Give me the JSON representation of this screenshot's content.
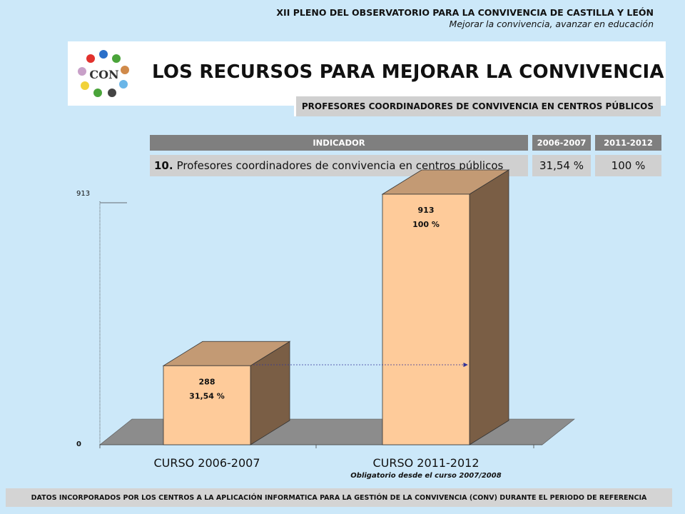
{
  "header": {
    "event": "XII PLENO DEL OBSERVATORIO PARA LA CONVIVENCIA DE CASTILLA Y LEÓN",
    "slogan": "Mejorar la convivencia, avanzar en educación"
  },
  "logo": {
    "text": "CON"
  },
  "title": "LOS RECURSOS PARA MEJORAR LA CONVIVENCIA",
  "subtitle": "PROFESORES COORDINADORES DE CONVIVENCIA EN CENTROS PÚBLICOS",
  "indicator_table": {
    "headers": [
      "INDICADOR",
      "2006-2007",
      "2011-2012"
    ],
    "row": {
      "number": "10.",
      "label": "Profesores coordinadores de convivencia en centros públicos",
      "v1": "31,54 %",
      "v2": "100 %"
    }
  },
  "chart_data": {
    "type": "bar",
    "categories": [
      "CURSO 2006-2007",
      "CURSO 2011-2012"
    ],
    "values": [
      288,
      913
    ],
    "value_labels": [
      "288",
      "913"
    ],
    "percent_labels": [
      "31,54 %",
      "100 %"
    ],
    "yticks": [
      "0",
      "913"
    ],
    "ylim": [
      0,
      913
    ],
    "note": "Obligatorio desde el curso 2007/2008",
    "colors": {
      "front": "#fecb9a",
      "top": "#c39a74",
      "side": "#7a5e45",
      "floor": "#8c8c8c",
      "arrow": "#333399"
    }
  },
  "footer": "DATOS INCORPORADOS POR LOS CENTROS A LA APLICACIÓN INFORMATICA PARA LA GESTIÓN DE LA CONVIVENCIA (CONV) DURANTE EL PERIODO DE REFERENCIA"
}
